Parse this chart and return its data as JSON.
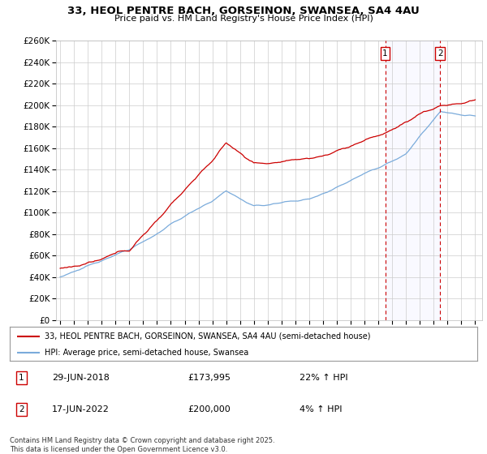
{
  "title1": "33, HEOL PENTRE BACH, GORSEINON, SWANSEA, SA4 4AU",
  "title2": "Price paid vs. HM Land Registry's House Price Index (HPI)",
  "legend_line1": "33, HEOL PENTRE BACH, GORSEINON, SWANSEA, SA4 4AU (semi-detached house)",
  "legend_line2": "HPI: Average price, semi-detached house, Swansea",
  "annotation1_date": "29-JUN-2018",
  "annotation1_price": "£173,995",
  "annotation1_hpi": "22% ↑ HPI",
  "annotation2_date": "17-JUN-2022",
  "annotation2_price": "£200,000",
  "annotation2_hpi": "4% ↑ HPI",
  "footnote": "Contains HM Land Registry data © Crown copyright and database right 2025.\nThis data is licensed under the Open Government Licence v3.0.",
  "price_color": "#cc0000",
  "hpi_color": "#7aabdb",
  "annotation_color": "#cc0000",
  "background_color": "#ffffff",
  "grid_color": "#cccccc",
  "ylim_max": 260000,
  "ytick_step": 20000,
  "sale1_year": 2018.49,
  "sale1_price": 173995,
  "sale2_year": 2022.46,
  "sale2_price": 200000,
  "xstart": 1995,
  "xend": 2025
}
